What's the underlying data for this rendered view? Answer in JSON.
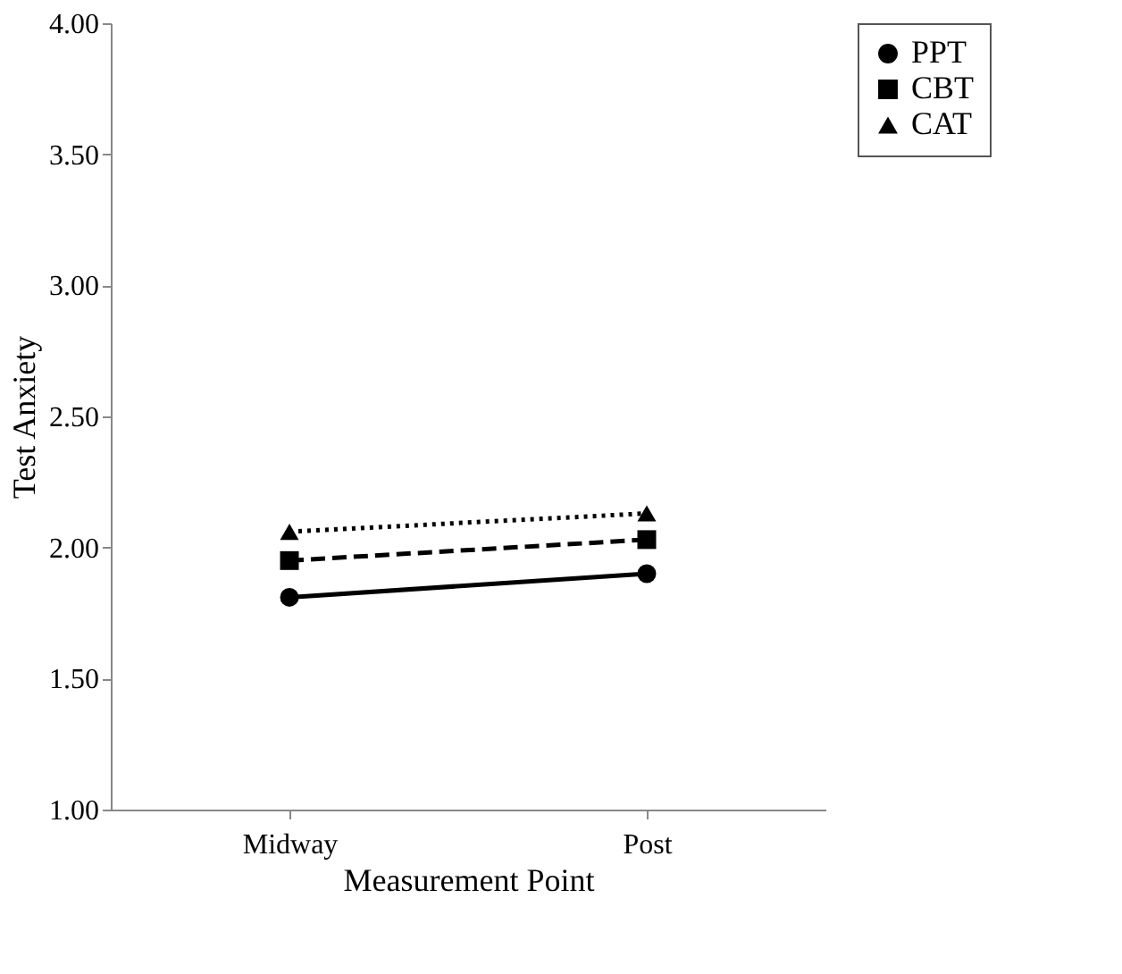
{
  "chart_data": {
    "type": "line",
    "xlabel": "Measurement Point",
    "ylabel": "Test Anxiety",
    "categories": [
      "Midway",
      "Post"
    ],
    "series": [
      {
        "name": "PPT",
        "color": "#000000",
        "values": [
          1.81,
          1.9
        ],
        "marker": "circle",
        "line_style": "solid"
      },
      {
        "name": "CBT",
        "color": "#000000",
        "values": [
          1.95,
          2.03
        ],
        "marker": "square",
        "line_style": "dashed"
      },
      {
        "name": "CAT",
        "color": "#000000",
        "values": [
          2.06,
          2.13
        ],
        "marker": "triangle",
        "line_style": "dotted"
      }
    ],
    "ylim": [
      1.0,
      4.0
    ],
    "yticks": [
      {
        "value": 1.0,
        "label": "1.00"
      },
      {
        "value": 1.5,
        "label": "1.50"
      },
      {
        "value": 2.0,
        "label": "2.00"
      },
      {
        "value": 2.5,
        "label": "2.50"
      },
      {
        "value": 3.0,
        "label": "3.00"
      },
      {
        "value": 3.5,
        "label": "3.50"
      },
      {
        "value": 4.0,
        "label": "4.00"
      }
    ],
    "grid": false,
    "legend": "right"
  }
}
